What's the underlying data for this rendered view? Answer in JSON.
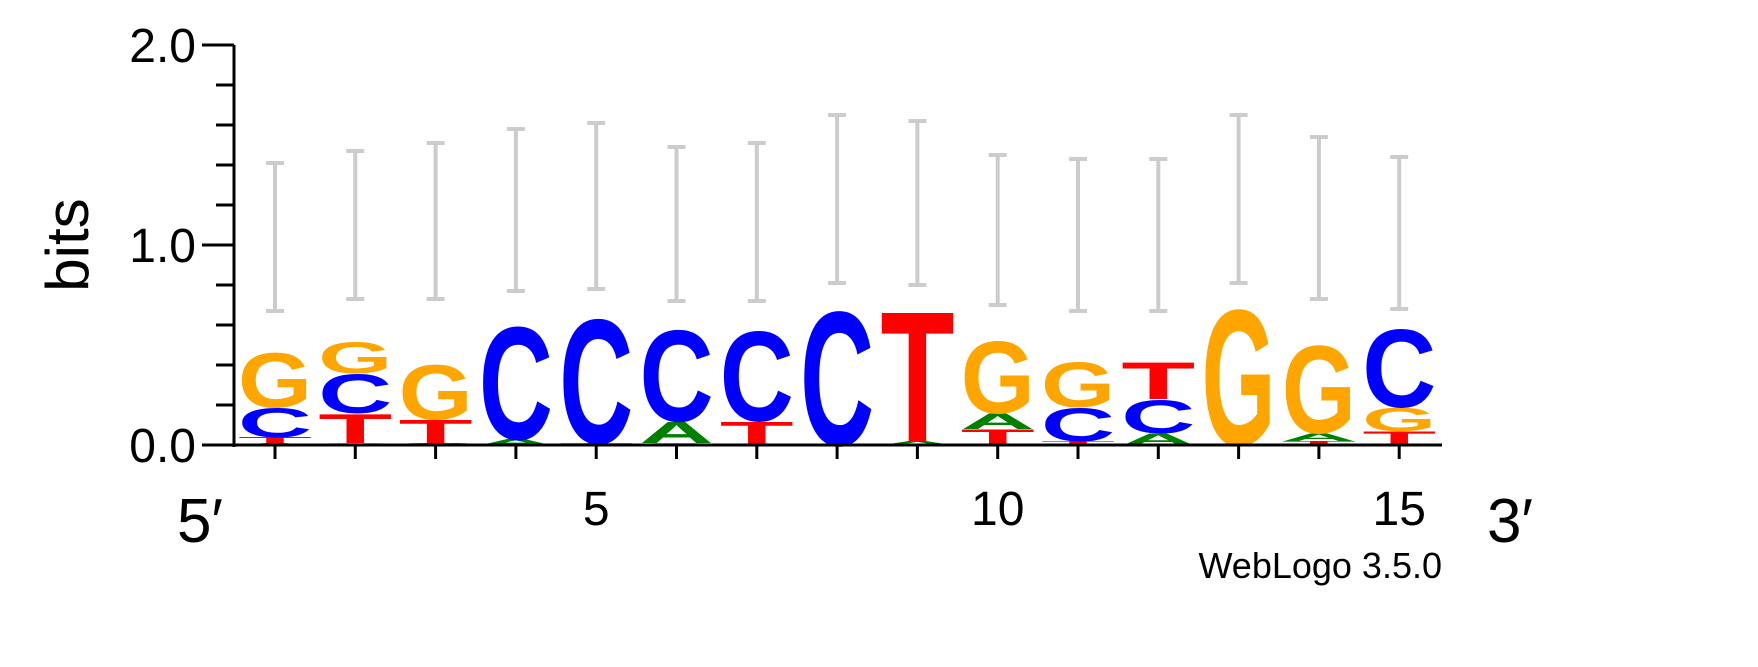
{
  "chart_data": {
    "type": "sequence-logo",
    "ylabel": "bits",
    "ylim": [
      0,
      2.0
    ],
    "y_ticks": [
      {
        "value": 0.0,
        "label": "0.0"
      },
      {
        "value": 1.0,
        "label": "1.0"
      },
      {
        "value": 2.0,
        "label": "2.0"
      }
    ],
    "y_minor_step": 0.2,
    "positions": [
      1,
      2,
      3,
      4,
      5,
      6,
      7,
      8,
      9,
      10,
      11,
      12,
      13,
      14,
      15
    ],
    "x_tick_labels": [
      {
        "position": 5,
        "label": "5"
      },
      {
        "position": 10,
        "label": "10"
      },
      {
        "position": 15,
        "label": "15"
      }
    ],
    "end_labels": {
      "left": "5′",
      "right": "3′"
    },
    "base_colors": {
      "A": "#008000",
      "C": "#0000ff",
      "G": "#ffa500",
      "T": "#ff0000"
    },
    "error_bar_color": "#cccccc",
    "columns": [
      {
        "position": 1,
        "stack": [
          {
            "base": "A",
            "bits": 0.01
          },
          {
            "base": "T",
            "bits": 0.03
          },
          {
            "base": "C",
            "bits": 0.15
          },
          {
            "base": "G",
            "bits": 0.28
          }
        ],
        "error": [
          0.67,
          1.41
        ]
      },
      {
        "position": 2,
        "stack": [
          {
            "base": "G",
            "bits": 0.01
          },
          {
            "base": "T",
            "bits": 0.15
          },
          {
            "base": "C",
            "bits": 0.2
          },
          {
            "base": "G",
            "bits": 0.16
          }
        ],
        "error": [
          0.73,
          1.47
        ]
      },
      {
        "position": 3,
        "stack": [
          {
            "base": "C",
            "bits": 0.01
          },
          {
            "base": "T",
            "bits": 0.12
          },
          {
            "base": "G",
            "bits": 0.28
          }
        ],
        "error": [
          0.73,
          1.51
        ]
      },
      {
        "position": 4,
        "stack": [
          {
            "base": "A",
            "bits": 0.03
          },
          {
            "base": "C",
            "bits": 0.58
          }
        ],
        "error": [
          0.77,
          1.58
        ]
      },
      {
        "position": 5,
        "stack": [
          {
            "base": "T",
            "bits": 0.01
          },
          {
            "base": "C",
            "bits": 0.64
          }
        ],
        "error": [
          0.78,
          1.61
        ]
      },
      {
        "position": 6,
        "stack": [
          {
            "base": "G",
            "bits": 0.01
          },
          {
            "base": "A",
            "bits": 0.11
          },
          {
            "base": "C",
            "bits": 0.47
          }
        ],
        "error": [
          0.72,
          1.49
        ]
      },
      {
        "position": 7,
        "stack": [
          {
            "base": "T",
            "bits": 0.12
          },
          {
            "base": "C",
            "bits": 0.46
          }
        ],
        "error": [
          0.72,
          1.51
        ]
      },
      {
        "position": 8,
        "stack": [
          {
            "base": "C",
            "bits": 0.69
          }
        ],
        "error": [
          0.81,
          1.65
        ]
      },
      {
        "position": 9,
        "stack": [
          {
            "base": "A",
            "bits": 0.02
          },
          {
            "base": "T",
            "bits": 0.67
          }
        ],
        "error": [
          0.8,
          1.62
        ]
      },
      {
        "position": 10,
        "stack": [
          {
            "base": "T",
            "bits": 0.08
          },
          {
            "base": "A",
            "bits": 0.08
          },
          {
            "base": "G",
            "bits": 0.37
          }
        ],
        "error": [
          0.7,
          1.45
        ]
      },
      {
        "position": 11,
        "stack": [
          {
            "base": "T",
            "bits": 0.02
          },
          {
            "base": "C",
            "bits": 0.17
          },
          {
            "base": "G",
            "bits": 0.23
          }
        ],
        "error": [
          0.67,
          1.43
        ]
      },
      {
        "position": 12,
        "stack": [
          {
            "base": "A",
            "bits": 0.06
          },
          {
            "base": "C",
            "bits": 0.17
          },
          {
            "base": "T",
            "bits": 0.19
          }
        ],
        "error": [
          0.67,
          1.43
        ]
      },
      {
        "position": 13,
        "stack": [
          {
            "base": "G",
            "bits": 0.7
          }
        ],
        "error": [
          0.81,
          1.65
        ]
      },
      {
        "position": 14,
        "stack": [
          {
            "base": "T",
            "bits": 0.02
          },
          {
            "base": "A",
            "bits": 0.04
          },
          {
            "base": "G",
            "bits": 0.45
          }
        ],
        "error": [
          0.73,
          1.54
        ]
      },
      {
        "position": 15,
        "stack": [
          {
            "base": "T",
            "bits": 0.07
          },
          {
            "base": "G",
            "bits": 0.12
          },
          {
            "base": "C",
            "bits": 0.4
          }
        ],
        "error": [
          0.68,
          1.44
        ]
      }
    ]
  },
  "credit": "WebLogo 3.5.0"
}
